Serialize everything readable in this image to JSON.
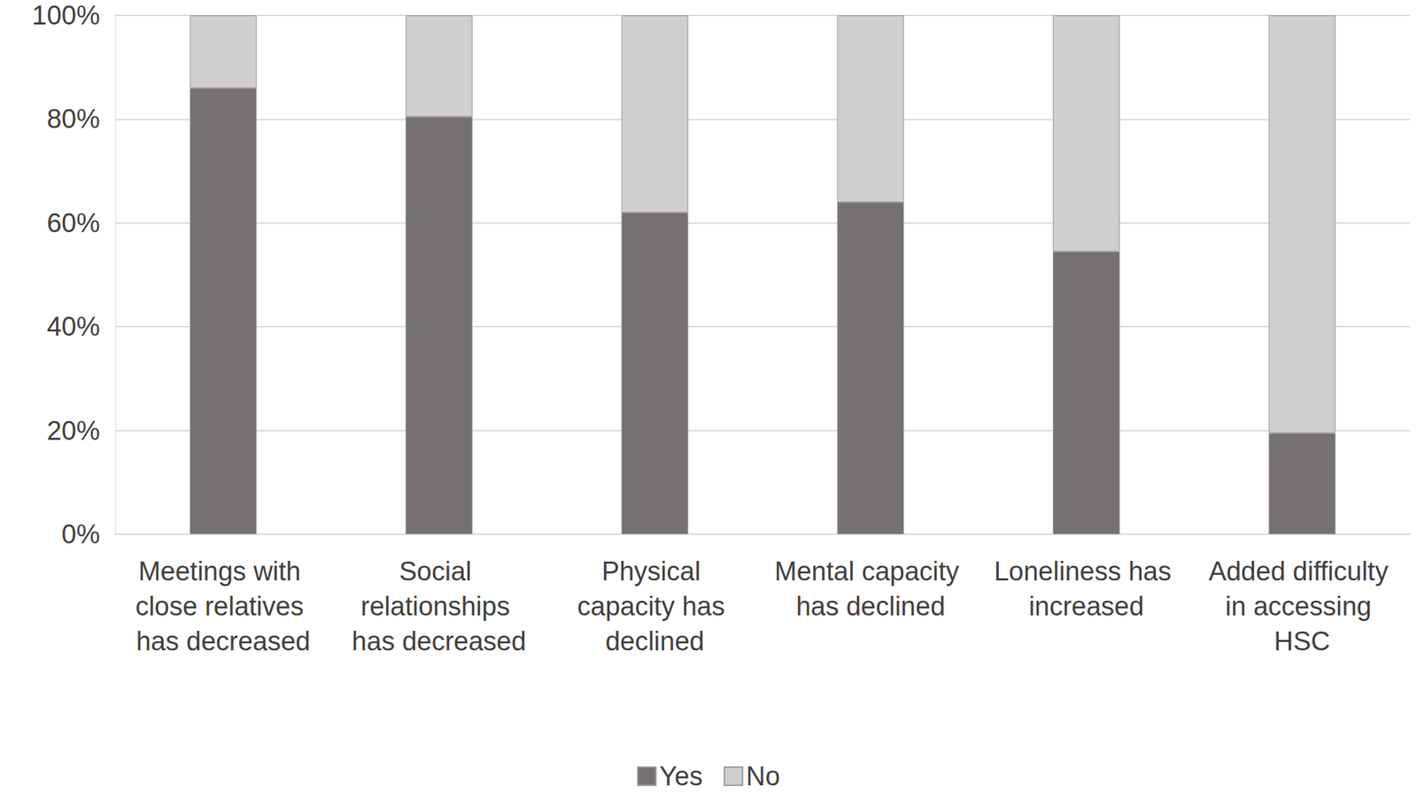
{
  "chart_data": {
    "type": "bar",
    "stacked": true,
    "grid": true,
    "legend": "bottom",
    "categories": [
      "Meetings with close relatives has decreased",
      "Social relationships has decreased",
      "Physical capacity has declined",
      "Mental capacity has declined",
      "Loneliness has increased",
      "Added difficulty in accessing HSC"
    ],
    "series": [
      {
        "name": "Yes",
        "color": "#767171",
        "values": [
          86,
          80.5,
          62,
          64,
          54.5,
          19.5
        ]
      },
      {
        "name": "No",
        "color": "#d0cece",
        "values": [
          14,
          19.5,
          38,
          36,
          45.5,
          80.5
        ]
      }
    ],
    "ylim": [
      0,
      100
    ],
    "yticks": [
      {
        "value": 0,
        "label": "0%"
      },
      {
        "value": 20,
        "label": "20%"
      },
      {
        "value": 40,
        "label": "40%"
      },
      {
        "value": 60,
        "label": "60%"
      },
      {
        "value": 80,
        "label": "80%"
      },
      {
        "value": 100,
        "label": "100%"
      }
    ]
  }
}
